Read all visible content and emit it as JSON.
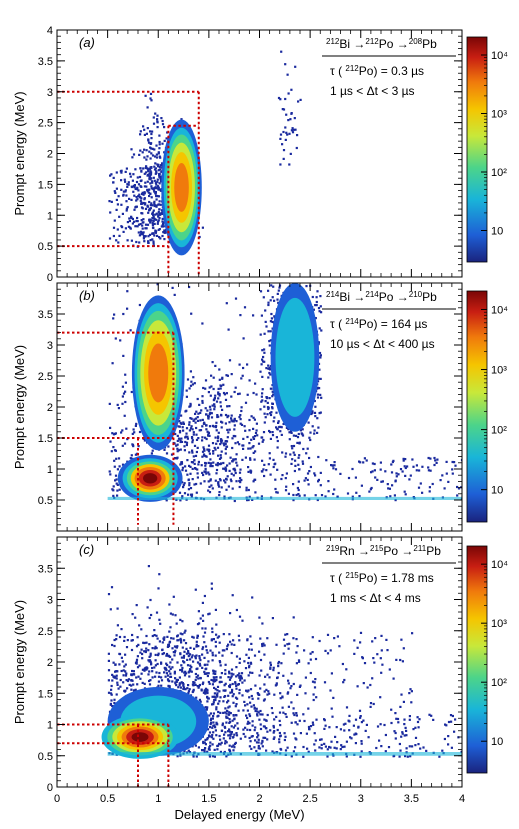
{
  "chart_data": [
    {
      "type": "heatmap",
      "panel_label": "(a)",
      "ylabel": "Prompt energy (MeV)",
      "xlim": [
        0,
        4
      ],
      "ylim": [
        0,
        4
      ],
      "yticks": [
        "0",
        "0.5",
        "1",
        "1.5",
        "2",
        "2.5",
        "3",
        "3.5",
        "4"
      ],
      "annotation": {
        "decay": {
          "m1": "212",
          "e1": "Bi",
          "m2": "212",
          "e2": "Po",
          "m3": "208",
          "e3": "Pb"
        },
        "lifetime": {
          "pre": "τ (",
          "mass": "212",
          "iso": "Po",
          "post": ") = 0.3 µs"
        },
        "window": "1 µs < Δt < 3 µs"
      },
      "cuts": {
        "prompt": [
          0.5,
          3.0
        ],
        "delayed": [
          1.1,
          1.4
        ],
        "inner_top": 2.45
      },
      "colorbar": {
        "scale": "log",
        "ticks": [
          "10",
          "10²",
          "10³",
          "10⁴"
        ]
      }
    },
    {
      "type": "heatmap",
      "panel_label": "(b)",
      "ylabel": "Prompt energy (MeV)",
      "xlim": [
        0,
        4
      ],
      "ylim": [
        0,
        4
      ],
      "yticks": [
        "0.5",
        "1",
        "1.5",
        "2",
        "2.5",
        "3",
        "3.5"
      ],
      "annotation": {
        "decay": {
          "m1": "214",
          "e1": "Bi",
          "m2": "214",
          "e2": "Po",
          "m3": "210",
          "e3": "Pb"
        },
        "lifetime": {
          "pre": "τ (",
          "mass": "214",
          "iso": "Po",
          "post": ") = 164 µs"
        },
        "window": "10 µs < Δt < 400 µs"
      },
      "cuts": {
        "prompt": [
          1.5,
          3.2
        ],
        "delayed": [
          0.8,
          1.15
        ]
      },
      "colorbar": {
        "scale": "log",
        "ticks": [
          "10",
          "10²",
          "10³",
          "10⁴"
        ]
      }
    },
    {
      "type": "heatmap",
      "panel_label": "(c)",
      "ylabel": "Prompt energy (MeV)",
      "xlabel": "Delayed energy (MeV)",
      "xlim": [
        0,
        4
      ],
      "ylim": [
        0,
        4
      ],
      "xticks": [
        "0",
        "0.5",
        "1",
        "1.5",
        "2",
        "2.5",
        "3",
        "3.5",
        "4"
      ],
      "yticks": [
        "0",
        "0.5",
        "1",
        "1.5",
        "2",
        "2.5",
        "3",
        "3.5"
      ],
      "annotation": {
        "decay": {
          "m1": "219",
          "e1": "Rn",
          "m2": "215",
          "e2": "Po",
          "m3": "211",
          "e3": "Pb"
        },
        "lifetime": {
          "pre": "τ (",
          "mass": "215",
          "iso": "Po",
          "post": ") = 1.78 ms"
        },
        "window": "1 ms < Δt < 4 ms"
      },
      "cuts": {
        "prompt": [
          0.7,
          1.0
        ],
        "delayed": [
          0.8,
          1.1
        ]
      },
      "colorbar": {
        "scale": "log",
        "ticks": [
          "10",
          "10²",
          "10³",
          "10⁴"
        ]
      }
    }
  ],
  "colors": {
    "cut_lines": "#cc0000",
    "scale": [
      "#1a237e",
      "#1e5fd6",
      "#19b5d8",
      "#4cd48a",
      "#c8e83a",
      "#f5c500",
      "#f07a0c",
      "#c81e12",
      "#7a0606"
    ]
  }
}
